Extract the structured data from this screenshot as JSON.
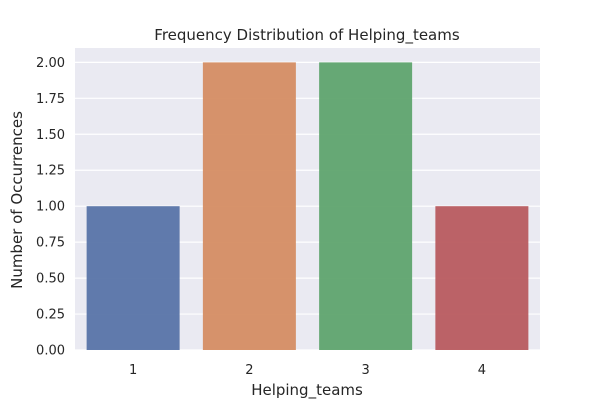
{
  "chart_data": {
    "type": "bar",
    "title": "Frequency Distribution of Helping_teams",
    "xlabel": "Helping_teams",
    "ylabel": "Number of Occurrences",
    "categories": [
      "1",
      "2",
      "3",
      "4"
    ],
    "values": [
      1,
      2,
      2,
      1
    ],
    "ylim": [
      0,
      2.1
    ],
    "yticks": [
      "0.00",
      "0.25",
      "0.50",
      "0.75",
      "1.00",
      "1.25",
      "1.50",
      "1.75",
      "2.00"
    ],
    "grid": true,
    "colors": [
      "#5874a8",
      "#d58d63",
      "#5fa46e",
      "#b85b5f"
    ],
    "background": "#eaeaf2"
  }
}
